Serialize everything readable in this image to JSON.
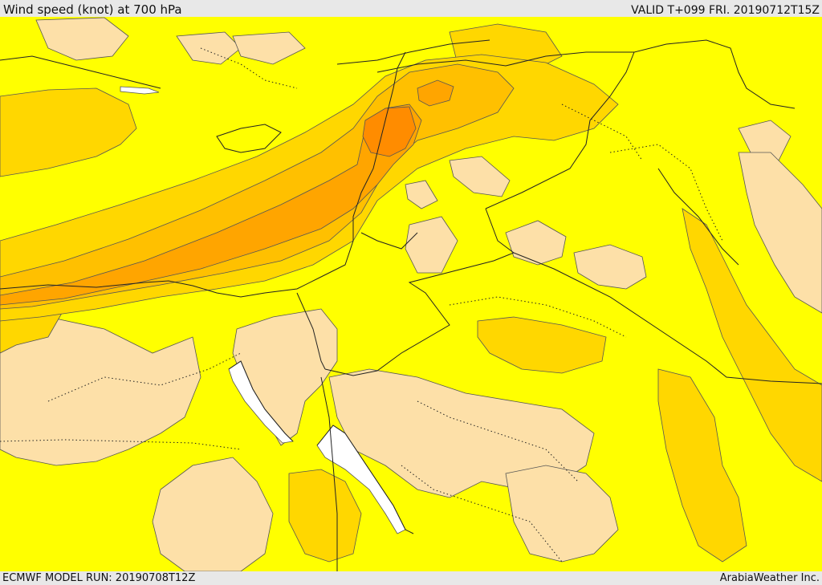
{
  "header": {
    "title": "Wind speed (knot) at 700 hPa",
    "valid_label": "VALID T+099 FRI. 20190712T15Z"
  },
  "footer": {
    "model_run": "ECMWF MODEL RUN: 20190708T12Z",
    "credit": "ArabiaWeather Inc."
  },
  "map": {
    "variable": "wind speed",
    "unit": "knot",
    "level": "700 hPa",
    "colors": {
      "light": "#fde0a8",
      "base": "#ffff00",
      "band_1": "#ffd700",
      "band_2": "#ffc000",
      "band_3": "#ffa500",
      "band_4": "#ff8c00",
      "water": "#ffffff",
      "contour": "#555555",
      "border": "#222222"
    }
  }
}
